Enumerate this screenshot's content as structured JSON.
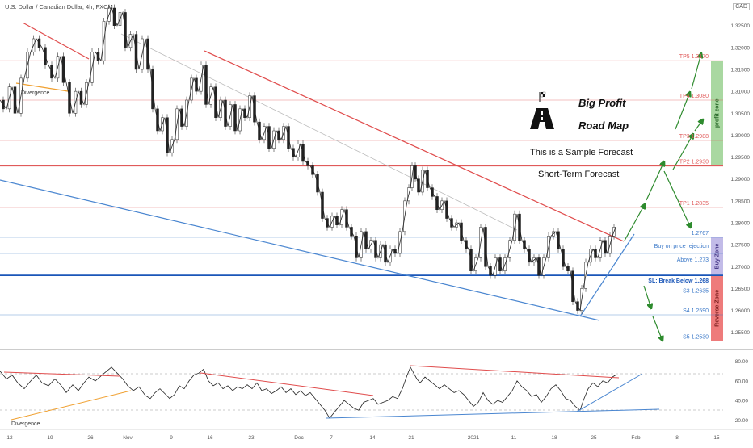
{
  "symbol": "U.S. Dollar / Canadian Dollar, 4h, FXCM",
  "currency": "CAD",
  "chart_data": {
    "type": "line",
    "price_axis": {
      "ticks": [
        "1.32500",
        "1.32000",
        "1.31500",
        "1.31000",
        "1.30500",
        "1.30000",
        "1.29500",
        "1.29000",
        "1.28500",
        "1.28000",
        "1.27500",
        "1.27000",
        "1.26500",
        "1.26000",
        "1.25500"
      ],
      "min": 1.252,
      "max": 1.329
    },
    "rsi_axis": {
      "ticks": [
        "80.00",
        "60.00",
        "40.00",
        "20.00"
      ],
      "min": 12,
      "max": 88
    },
    "x_ticks": [
      "12",
      "19",
      "26",
      "Nov",
      "9",
      "16",
      "23",
      "Dec",
      "7",
      "14",
      "21",
      "2021",
      "11",
      "18",
      "25",
      "Feb",
      "8",
      "15"
    ],
    "levels": [
      {
        "name": "TP5",
        "label": "TP5 1.3170",
        "value": 1.317,
        "color": "#e05a5a"
      },
      {
        "name": "TP4",
        "label": "TP4 1.3080",
        "value": 1.308,
        "color": "#e05a5a"
      },
      {
        "name": "TP3",
        "label": "TP3 1.2988",
        "value": 1.2988,
        "color": "#e05a5a"
      },
      {
        "name": "TP2",
        "label": "TP2 1.2930",
        "value": 1.293,
        "color": "#e05a5a"
      },
      {
        "name": "TP1",
        "label": "TP1 1.2835",
        "value": 1.2835,
        "color": "#e05a5a"
      },
      {
        "name": "current",
        "label": "1.2767",
        "value": 1.2767,
        "color": "#3a78c8"
      },
      {
        "name": "buy",
        "label": "Buy on price rejection",
        "value": 1.2747,
        "color": "#3a78c8"
      },
      {
        "name": "above",
        "label": "Above 1.273",
        "value": 1.273,
        "color": "#3a78c8"
      },
      {
        "name": "SL",
        "label": "SL: Break Below 1.268",
        "value": 1.268,
        "color": "#1a56b8"
      },
      {
        "name": "S3",
        "label": "S3 1.2635",
        "value": 1.2635,
        "color": "#3a78c8"
      },
      {
        "name": "S4",
        "label": "S4 1.2590",
        "value": 1.259,
        "color": "#3a78c8"
      },
      {
        "name": "S5",
        "label": "S5 1.2530",
        "value": 1.253,
        "color": "#3a78c8"
      }
    ],
    "zones": [
      {
        "name": "profit zone",
        "from": 1.293,
        "to": 1.317,
        "color": "#a9d8a1"
      },
      {
        "name": "Buy Zone",
        "from": 1.268,
        "to": 1.2767,
        "color": "#c2bbe8"
      },
      {
        "name": "Reverse Zone",
        "from": 1.253,
        "to": 1.268,
        "color": "#ee7b7b"
      }
    ],
    "price_path": [
      [
        0,
        1.308
      ],
      [
        8,
        1.306
      ],
      [
        15,
        1.311
      ],
      [
        22,
        1.305
      ],
      [
        30,
        1.313
      ],
      [
        38,
        1.319
      ],
      [
        45,
        1.322
      ],
      [
        52,
        1.32
      ],
      [
        60,
        1.316
      ],
      [
        68,
        1.313
      ],
      [
        75,
        1.318
      ],
      [
        82,
        1.312
      ],
      [
        90,
        1.305
      ],
      [
        97,
        1.31
      ],
      [
        104,
        1.307
      ],
      [
        110,
        1.312
      ],
      [
        118,
        1.319
      ],
      [
        125,
        1.317
      ],
      [
        132,
        1.326
      ],
      [
        138,
        1.329
      ],
      [
        145,
        1.325
      ],
      [
        152,
        1.328
      ],
      [
        158,
        1.32
      ],
      [
        165,
        1.323
      ],
      [
        172,
        1.315
      ],
      [
        180,
        1.322
      ],
      [
        186,
        1.315
      ],
      [
        192,
        1.306
      ],
      [
        198,
        1.301
      ],
      [
        204,
        1.304
      ],
      [
        210,
        1.296
      ],
      [
        216,
        1.299
      ],
      [
        222,
        1.306
      ],
      [
        228,
        1.302
      ],
      [
        234,
        1.308
      ],
      [
        240,
        1.313
      ],
      [
        246,
        1.31
      ],
      [
        252,
        1.316
      ],
      [
        258,
        1.307
      ],
      [
        264,
        1.311
      ],
      [
        270,
        1.304
      ],
      [
        276,
        1.308
      ],
      [
        282,
        1.302
      ],
      [
        288,
        1.307
      ],
      [
        294,
        1.301
      ],
      [
        300,
        1.306
      ],
      [
        306,
        1.304
      ],
      [
        312,
        1.309
      ],
      [
        318,
        1.303
      ],
      [
        324,
        1.299
      ],
      [
        330,
        1.302
      ],
      [
        336,
        1.297
      ],
      [
        342,
        1.301
      ],
      [
        348,
        1.299
      ],
      [
        354,
        1.302
      ],
      [
        360,
        1.297
      ],
      [
        366,
        1.295
      ],
      [
        372,
        1.298
      ],
      [
        378,
        1.294
      ],
      [
        384,
        1.293
      ],
      [
        390,
        1.291
      ],
      [
        396,
        1.287
      ],
      [
        402,
        1.281
      ],
      [
        408,
        1.279
      ],
      [
        414,
        1.2815
      ],
      [
        420,
        1.2795
      ],
      [
        426,
        1.283
      ],
      [
        432,
        1.279
      ],
      [
        438,
        1.277
      ],
      [
        444,
        1.272
      ],
      [
        450,
        1.278
      ],
      [
        456,
        1.274
      ],
      [
        462,
        1.276
      ],
      [
        468,
        1.272
      ],
      [
        474,
        1.275
      ],
      [
        480,
        1.271
      ],
      [
        486,
        1.274
      ],
      [
        492,
        1.273
      ],
      [
        498,
        1.278
      ],
      [
        504,
        1.285
      ],
      [
        508,
        1.288
      ],
      [
        512,
        1.293
      ],
      [
        516,
        1.29
      ],
      [
        520,
        1.287
      ],
      [
        526,
        1.292
      ],
      [
        532,
        1.288
      ],
      [
        538,
        1.286
      ],
      [
        544,
        1.283
      ],
      [
        550,
        1.285
      ],
      [
        556,
        1.281
      ],
      [
        562,
        1.279
      ],
      [
        568,
        1.28
      ],
      [
        574,
        1.276
      ],
      [
        580,
        1.274
      ],
      [
        586,
        1.269
      ],
      [
        592,
        1.272
      ],
      [
        598,
        1.279
      ],
      [
        604,
        1.27
      ],
      [
        610,
        1.268
      ],
      [
        616,
        1.272
      ],
      [
        622,
        1.269
      ],
      [
        628,
        1.272
      ],
      [
        634,
        1.276
      ],
      [
        640,
        1.282
      ],
      [
        646,
        1.276
      ],
      [
        652,
        1.274
      ],
      [
        658,
        1.271
      ],
      [
        664,
        1.272
      ],
      [
        670,
        1.268
      ],
      [
        676,
        1.272
      ],
      [
        682,
        1.277
      ],
      [
        688,
        1.278
      ],
      [
        694,
        1.274
      ],
      [
        700,
        1.27
      ],
      [
        706,
        1.269
      ],
      [
        712,
        1.262
      ],
      [
        718,
        1.26
      ],
      [
        722,
        1.265
      ],
      [
        728,
        1.271
      ],
      [
        734,
        1.274
      ],
      [
        740,
        1.272
      ],
      [
        746,
        1.276
      ],
      [
        752,
        1.273
      ],
      [
        758,
        1.277
      ],
      [
        762,
        1.279
      ]
    ],
    "rsi_path": [
      [
        0,
        70
      ],
      [
        8,
        62
      ],
      [
        15,
        66
      ],
      [
        22,
        58
      ],
      [
        30,
        52
      ],
      [
        38,
        60
      ],
      [
        45,
        66
      ],
      [
        52,
        58
      ],
      [
        60,
        55
      ],
      [
        68,
        62
      ],
      [
        75,
        56
      ],
      [
        82,
        48
      ],
      [
        90,
        56
      ],
      [
        97,
        50
      ],
      [
        104,
        58
      ],
      [
        110,
        64
      ],
      [
        118,
        60
      ],
      [
        125,
        65
      ],
      [
        132,
        70
      ],
      [
        138,
        74
      ],
      [
        145,
        68
      ],
      [
        152,
        62
      ],
      [
        158,
        55
      ],
      [
        165,
        50
      ],
      [
        172,
        54
      ],
      [
        180,
        45
      ],
      [
        186,
        42
      ],
      [
        192,
        48
      ],
      [
        198,
        52
      ],
      [
        204,
        47
      ],
      [
        210,
        42
      ],
      [
        216,
        46
      ],
      [
        222,
        55
      ],
      [
        228,
        52
      ],
      [
        234,
        60
      ],
      [
        240,
        66
      ],
      [
        246,
        68
      ],
      [
        252,
        72
      ],
      [
        258,
        60
      ],
      [
        264,
        55
      ],
      [
        270,
        58
      ],
      [
        276,
        52
      ],
      [
        282,
        55
      ],
      [
        288,
        50
      ],
      [
        294,
        54
      ],
      [
        300,
        52
      ],
      [
        306,
        56
      ],
      [
        312,
        52
      ],
      [
        318,
        58
      ],
      [
        324,
        50
      ],
      [
        330,
        52
      ],
      [
        336,
        47
      ],
      [
        342,
        50
      ],
      [
        348,
        54
      ],
      [
        354,
        48
      ],
      [
        360,
        52
      ],
      [
        366,
        46
      ],
      [
        372,
        50
      ],
      [
        378,
        45
      ],
      [
        384,
        48
      ],
      [
        390,
        42
      ],
      [
        396,
        36
      ],
      [
        402,
        30
      ],
      [
        408,
        22
      ],
      [
        414,
        28
      ],
      [
        420,
        34
      ],
      [
        426,
        40
      ],
      [
        432,
        36
      ],
      [
        438,
        32
      ],
      [
        444,
        30
      ],
      [
        450,
        38
      ],
      [
        456,
        40
      ],
      [
        462,
        42
      ],
      [
        468,
        36
      ],
      [
        474,
        38
      ],
      [
        480,
        40
      ],
      [
        486,
        44
      ],
      [
        492,
        42
      ],
      [
        498,
        52
      ],
      [
        504,
        66
      ],
      [
        508,
        74
      ],
      [
        512,
        68
      ],
      [
        516,
        62
      ],
      [
        520,
        58
      ],
      [
        526,
        64
      ],
      [
        532,
        60
      ],
      [
        538,
        56
      ],
      [
        544,
        52
      ],
      [
        550,
        56
      ],
      [
        556,
        52
      ],
      [
        562,
        48
      ],
      [
        568,
        50
      ],
      [
        574,
        46
      ],
      [
        580,
        40
      ],
      [
        586,
        34
      ],
      [
        592,
        38
      ],
      [
        598,
        48
      ],
      [
        604,
        40
      ],
      [
        610,
        36
      ],
      [
        616,
        40
      ],
      [
        622,
        38
      ],
      [
        628,
        44
      ],
      [
        634,
        50
      ],
      [
        640,
        60
      ],
      [
        646,
        54
      ],
      [
        652,
        50
      ],
      [
        658,
        44
      ],
      [
        664,
        46
      ],
      [
        670,
        38
      ],
      [
        676,
        44
      ],
      [
        682,
        52
      ],
      [
        688,
        56
      ],
      [
        694,
        50
      ],
      [
        700,
        42
      ],
      [
        706,
        40
      ],
      [
        712,
        34
      ],
      [
        718,
        30
      ],
      [
        722,
        40
      ],
      [
        728,
        52
      ],
      [
        734,
        58
      ],
      [
        740,
        54
      ],
      [
        746,
        60
      ],
      [
        752,
        58
      ],
      [
        758,
        64
      ],
      [
        762,
        66
      ]
    ]
  },
  "annotations": {
    "title_line1": "Big Profit",
    "title_line2": "Road Map",
    "sample": "This is a Sample Forecast",
    "short_term": "Short-Term Forecast",
    "divergence_top": "Divergence",
    "divergence_bottom": "Divergence",
    "road_icon": "road-icon",
    "flag_icon": "checkered-flag-icon"
  },
  "colors": {
    "resistance": "#e04c4c",
    "support": "#4a86d0",
    "arrows": "#2e8b2e",
    "candle_up": "#333333",
    "candle_down": "#222222",
    "divergence": "#f0a030"
  }
}
